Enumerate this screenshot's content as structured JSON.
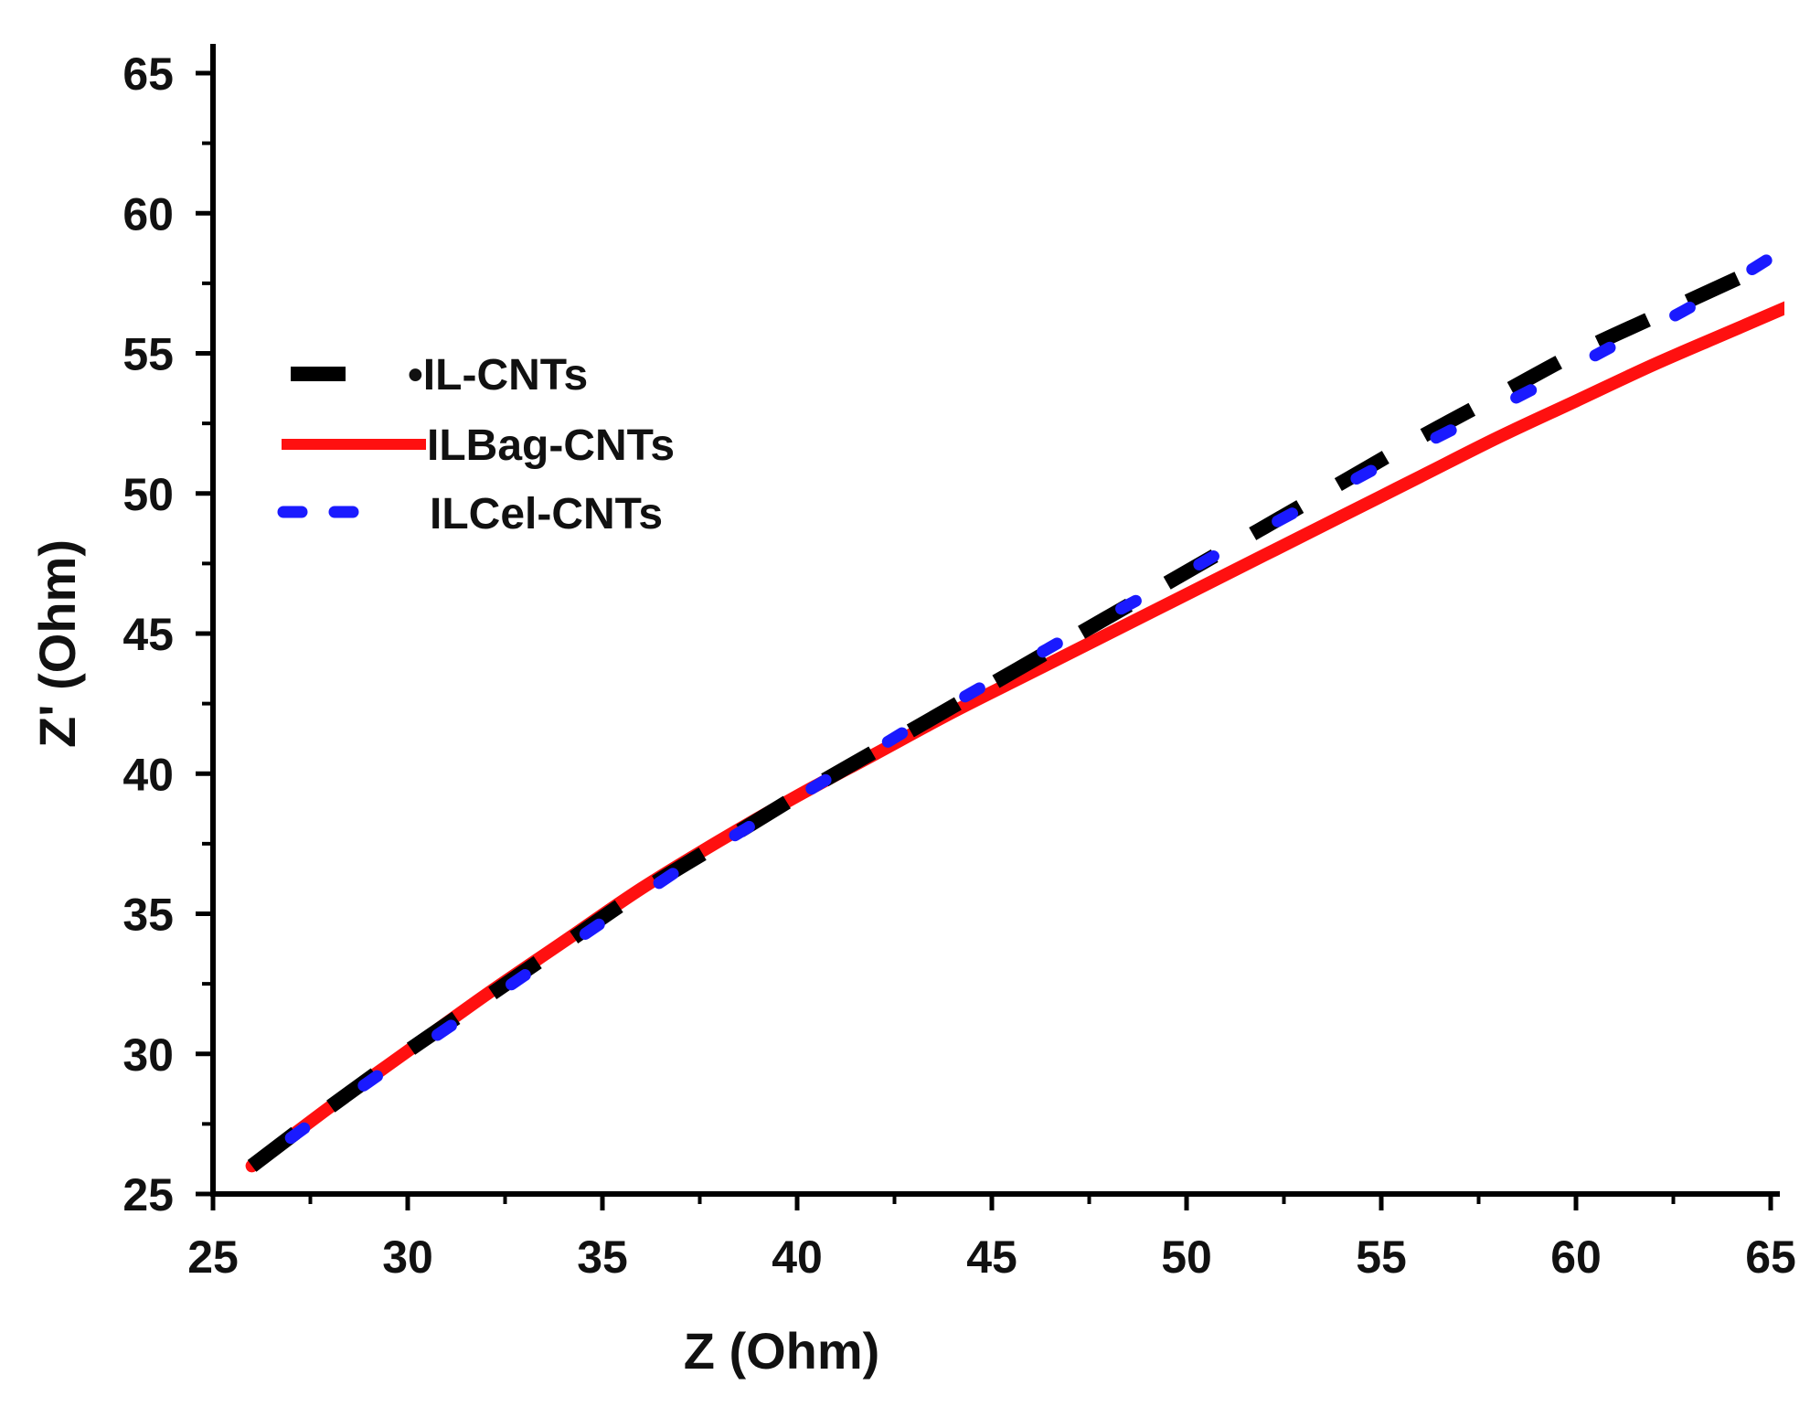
{
  "chart_data": {
    "type": "line",
    "title": "",
    "xlabel": "Z (Ohm)",
    "ylabel": "Z' (Ohm)",
    "xlim": [
      25,
      66
    ],
    "ylim": [
      25,
      66
    ],
    "xticks": [
      25,
      30,
      35,
      40,
      45,
      50,
      55,
      60,
      65
    ],
    "yticks": [
      25,
      30,
      35,
      40,
      45,
      50,
      55,
      60,
      65
    ],
    "xtick_labels": [
      "25",
      "30",
      "35",
      "40",
      "45",
      "50",
      "55",
      "60",
      "65"
    ],
    "ytick_labels": [
      "25",
      "30",
      "35",
      "40",
      "45",
      "50",
      "55",
      "60",
      "65"
    ],
    "grid": false,
    "legend_position": "upper-left",
    "series": [
      {
        "name": "•IL-CNTs",
        "color": "#000000",
        "style": "dashed",
        "x": [
          26,
          28,
          30,
          32,
          34,
          36,
          38,
          40,
          42,
          44,
          46,
          48,
          50,
          52,
          54,
          56,
          58,
          60,
          62,
          64.5
        ],
        "y": [
          26,
          28.1,
          30.1,
          32,
          33.9,
          35.8,
          37.5,
          39.2,
          40.8,
          42.4,
          44,
          45.6,
          47.2,
          48.8,
          50.4,
          52,
          53.5,
          55,
          56.3,
          57.9
        ]
      },
      {
        "name": "ILBag-CNTs",
        "color": "#ff1010",
        "style": "solid",
        "x": [
          26,
          28,
          30,
          32,
          34,
          36,
          38,
          40,
          42,
          44,
          46,
          48,
          50,
          52,
          54,
          56,
          58,
          60,
          62,
          64,
          66
        ],
        "y": [
          26,
          28.1,
          30.1,
          32.1,
          34,
          35.9,
          37.6,
          39.2,
          40.7,
          42.2,
          43.6,
          45,
          46.4,
          47.8,
          49.2,
          50.6,
          52,
          53.3,
          54.6,
          55.8,
          57
        ]
      },
      {
        "name": "ILCel-CNTs",
        "color": "#1a1aff",
        "style": "dotted",
        "x": [
          27,
          29,
          31,
          33,
          35,
          37,
          39,
          41,
          43,
          45,
          47,
          49,
          51,
          53,
          55,
          57,
          59,
          61,
          63,
          66
        ],
        "y": [
          27,
          29,
          30.9,
          32.8,
          34.7,
          36.6,
          38.3,
          40,
          41.7,
          43.3,
          44.9,
          46.4,
          48,
          49.5,
          51,
          52.4,
          53.8,
          55.3,
          56.7,
          59.3
        ]
      }
    ]
  }
}
